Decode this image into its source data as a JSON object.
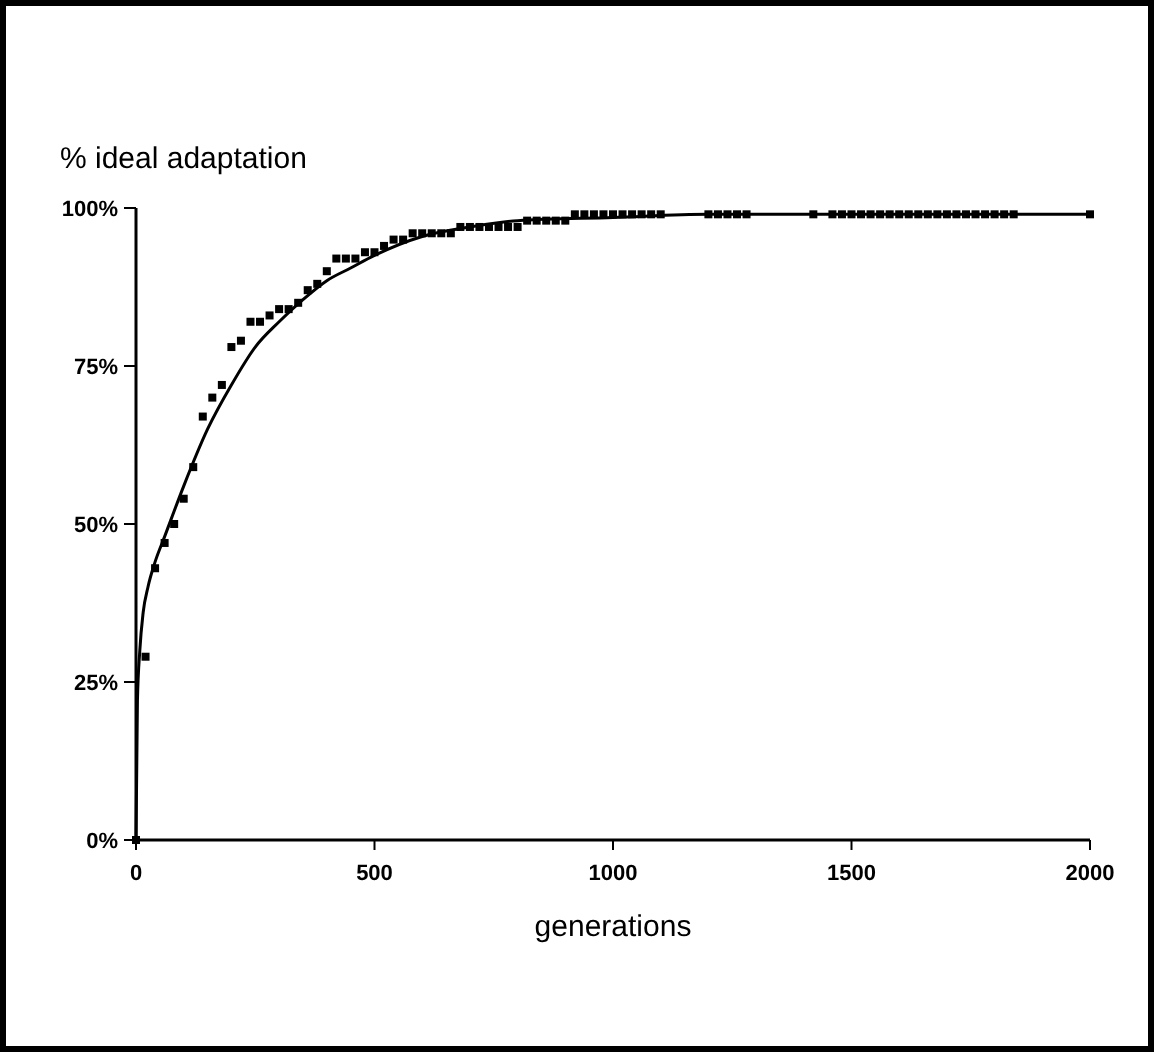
{
  "chart_data": {
    "type": "scatter",
    "ylabel": "% ideal adaptation",
    "xlabel": "generations",
    "xlim": [
      0,
      2000
    ],
    "xticks": [
      0,
      500,
      1000,
      1500,
      2000
    ],
    "ylim": [
      0,
      100
    ],
    "yticks": [
      {
        "value": 0,
        "label": "0%"
      },
      {
        "value": 25,
        "label": "25%"
      },
      {
        "value": 50,
        "label": "50%"
      },
      {
        "value": 75,
        "label": "75%"
      },
      {
        "value": 100,
        "label": "100%"
      }
    ],
    "grid": false,
    "series": [
      {
        "marker": "square",
        "color": "#000000",
        "x": [
          0,
          20,
          40,
          60,
          80,
          100,
          120,
          140,
          160,
          180,
          200,
          220,
          240,
          260,
          280,
          300,
          320,
          340,
          360,
          380,
          400,
          420,
          440,
          460,
          480,
          500,
          520,
          540,
          560,
          580,
          600,
          620,
          640,
          660,
          680,
          700,
          720,
          740,
          760,
          780,
          800,
          820,
          840,
          860,
          880,
          900,
          920,
          940,
          960,
          980,
          1000,
          1020,
          1040,
          1060,
          1080,
          1100,
          1200,
          1220,
          1240,
          1260,
          1280,
          1420,
          1460,
          1480,
          1500,
          1520,
          1540,
          1560,
          1580,
          1600,
          1620,
          1640,
          1660,
          1680,
          1700,
          1720,
          1740,
          1760,
          1780,
          1800,
          1820,
          1840,
          2000
        ],
        "values": [
          0,
          29,
          43,
          47,
          50,
          54,
          59,
          67,
          70,
          72,
          78,
          79,
          82,
          82,
          83,
          84,
          84,
          85,
          87,
          88,
          90,
          92,
          92,
          92,
          93,
          93,
          94,
          95,
          95,
          96,
          96,
          96,
          96,
          96,
          97,
          97,
          97,
          97,
          97,
          97,
          97,
          98,
          98,
          98,
          98,
          98,
          99,
          99,
          99,
          99,
          99,
          99,
          99,
          99,
          99,
          99,
          99,
          99,
          99,
          99,
          99,
          99,
          99,
          99,
          99,
          99,
          99,
          99,
          99,
          99,
          99,
          99,
          99,
          99,
          99,
          99,
          99,
          99,
          99,
          99,
          99,
          99,
          99
        ]
      },
      {
        "type": "line",
        "marker": "none",
        "color": "#000000",
        "x": [
          0,
          3,
          8,
          15,
          25,
          40,
          60,
          100,
          150,
          200,
          250,
          300,
          350,
          400,
          450,
          500,
          600,
          700,
          800,
          1000,
          1200,
          1500,
          2000
        ],
        "values": [
          0,
          22,
          30,
          36,
          40,
          44,
          48,
          56,
          65,
          72,
          78,
          82,
          85.5,
          88.5,
          90.5,
          92.5,
          95.5,
          97,
          98,
          98.5,
          99,
          99,
          99
        ]
      }
    ]
  }
}
